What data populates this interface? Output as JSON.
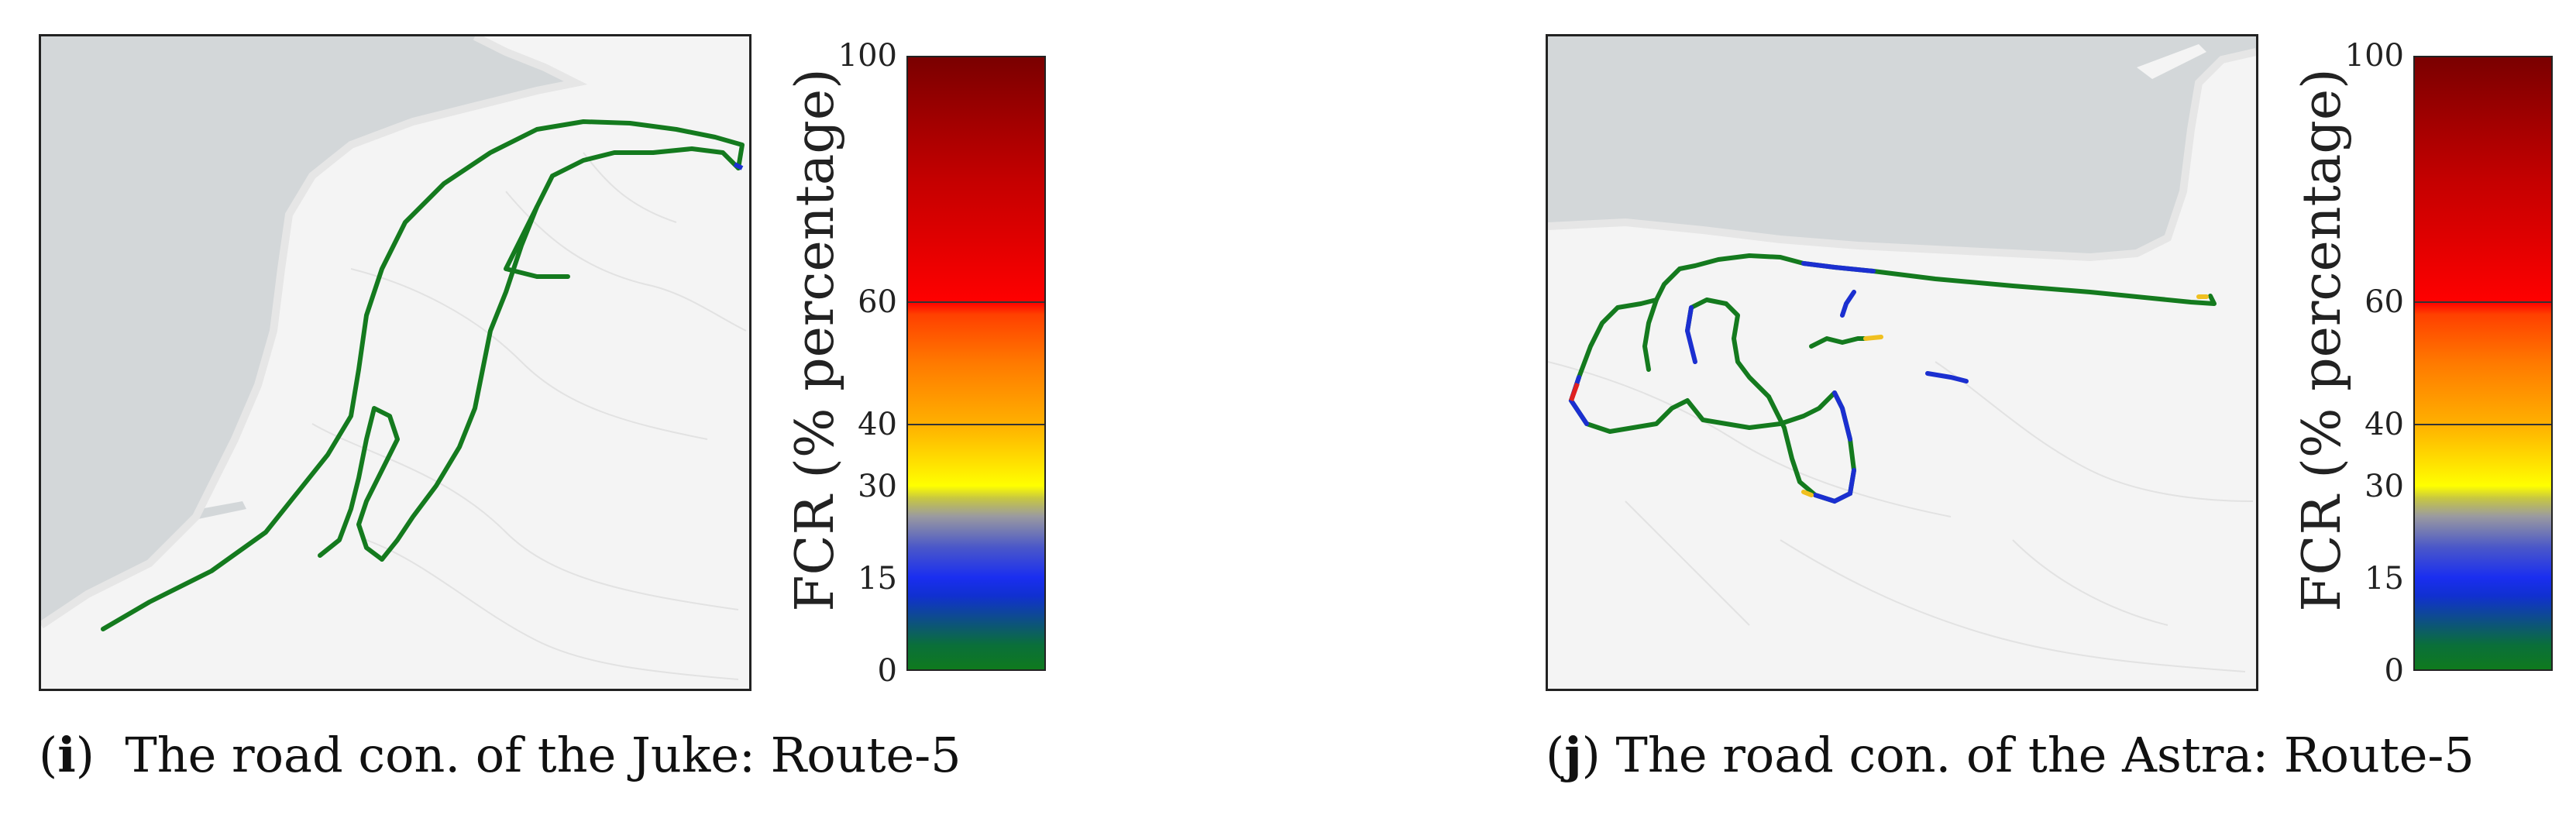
{
  "panels": [
    {
      "letter": "i",
      "caption": "The road con. of the Juke: Route-5",
      "colorbar_label": "FCR (% percentage)",
      "ticks": [
        "0",
        "15",
        "30",
        "40",
        "60",
        "100"
      ]
    },
    {
      "letter": "j",
      "caption": "The road con. of the Astra: Route-5",
      "colorbar_label": "FCR (% percentage)",
      "ticks": [
        "0",
        "15",
        "30",
        "40",
        "60",
        "100"
      ]
    }
  ],
  "colors": {
    "sea": "#d3d7d9",
    "land": "#f4f4f4",
    "route_green": "#147a1e",
    "route_blue": "#1b2fd0",
    "route_yellow": "#f0c020",
    "route_red": "#e02020"
  }
}
